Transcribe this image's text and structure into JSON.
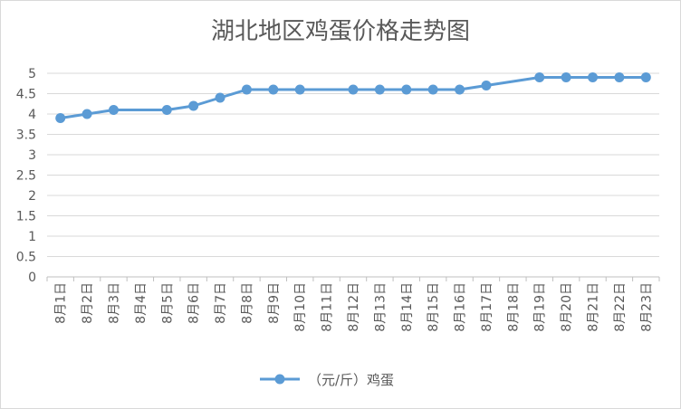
{
  "chart_data": {
    "type": "line",
    "title": "湖北地区鸡蛋价格走势图",
    "xlabel": "",
    "ylabel": "",
    "ylim": [
      0,
      5
    ],
    "yticks": [
      "0",
      "0.5",
      "1",
      "1.5",
      "2",
      "2.5",
      "3",
      "3.5",
      "4",
      "4.5",
      "5"
    ],
    "grid": true,
    "legend_position": "bottom",
    "categories": [
      "8月1日",
      "8月2日",
      "8月3日",
      "8月4日",
      "8月5日",
      "8月6日",
      "8月7日",
      "8月8日",
      "8月9日",
      "8月10日",
      "8月11日",
      "8月12日",
      "8月13日",
      "8月14日",
      "8月15日",
      "8月16日",
      "8月17日",
      "8月18日",
      "8月19日",
      "8月20日",
      "8月21日",
      "8月22日",
      "8月23日"
    ],
    "series": [
      {
        "name": "（元/斤）鸡蛋",
        "color": "#5b9bd5",
        "values": [
          3.9,
          4.0,
          4.1,
          null,
          4.1,
          4.2,
          4.4,
          4.6,
          4.6,
          4.6,
          null,
          4.6,
          4.6,
          4.6,
          4.6,
          4.6,
          4.7,
          null,
          4.9,
          4.9,
          4.9,
          4.9,
          4.9
        ]
      }
    ]
  }
}
